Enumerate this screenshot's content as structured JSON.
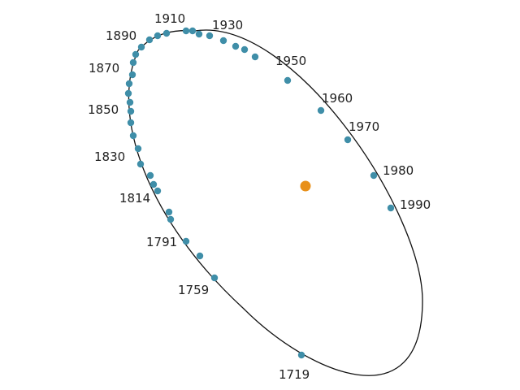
{
  "colors": {
    "orbit_stroke": "#111111",
    "point_fill": "#3f8ea8",
    "center_fill": "#e8901a",
    "background": "#ffffff"
  },
  "labels": {
    "y1910": "1910",
    "y1930": "1930",
    "y1890": "1890",
    "y1870": "1870",
    "y1950": "1950",
    "y1960": "1960",
    "y1850": "1850",
    "y1970": "1970",
    "y1830": "1830",
    "y1980": "1980",
    "y1814": "1814",
    "y1990": "1990",
    "y1791": "1791",
    "y1759": "1759",
    "y1719": "1719"
  }
}
